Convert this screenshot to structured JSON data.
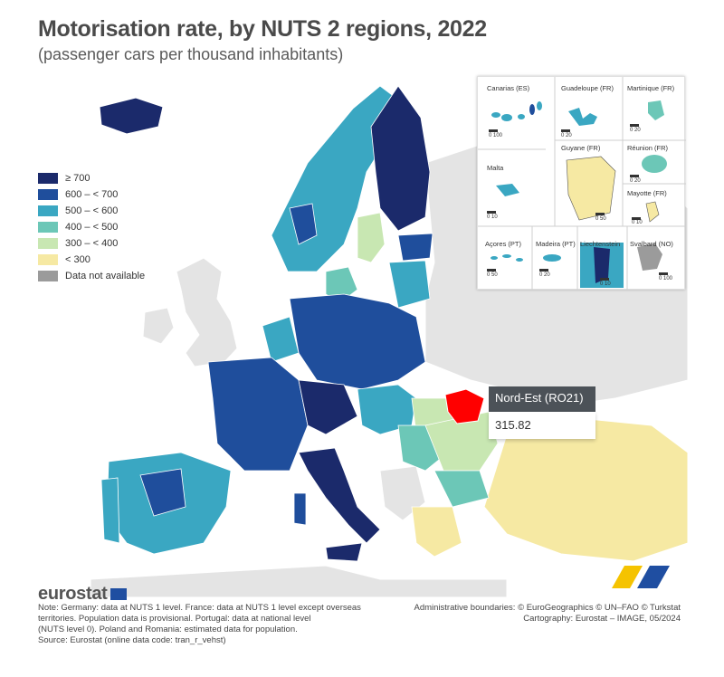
{
  "header": {
    "title": "Motorisation rate, by NUTS 2 regions, 2022",
    "subtitle": "(passenger cars per thousand inhabitants)"
  },
  "legend": [
    {
      "label": "≥ 700",
      "color": "#1b2a6b"
    },
    {
      "label": "600 – < 700",
      "color": "#1f4e9c"
    },
    {
      "label": "500 – < 600",
      "color": "#3aa7c2"
    },
    {
      "label": "400 – < 500",
      "color": "#6cc7b7"
    },
    {
      "label": "300 – < 400",
      "color": "#c8e7b2"
    },
    {
      "label": "< 300",
      "color": "#f6e9a3"
    },
    {
      "label": "Data not available",
      "color": "#9b9b9b"
    }
  ],
  "insets": {
    "canarias": "Canarias (ES)",
    "guadeloupe": "Guadeloupe (FR)",
    "martinique": "Martinique (FR)",
    "reunion": "Réunion (FR)",
    "malta": "Malta",
    "guyane": "Guyane (FR)",
    "mayotte": "Mayotte (FR)",
    "acores": "Açores (PT)",
    "madeira": "Madeira (PT)",
    "liechtenstein": "Liechtenstein",
    "svalbard": "Svalbard (NO)",
    "scales": {
      "canarias": "0  100",
      "guadeloupe": "0  20",
      "martinique": "0  20",
      "reunion": "0  20",
      "malta": "0  10",
      "guyane": "0  50",
      "mayotte": "0  10",
      "acores": "0  50",
      "madeira": "0  20",
      "liechtenstein": "0  10",
      "svalbard": "0  100"
    }
  },
  "tooltip": {
    "region": "Nord-Est (RO21)",
    "value": "315.82"
  },
  "brand": {
    "name": "eurostat"
  },
  "notes": {
    "line1": "Note: Germany: data at NUTS 1 level. France: data at NUTS 1 level except overseas",
    "line2": "territories. Population data is provisional. Portugal: data at national level",
    "line3": "(NUTS level 0). Poland and Romania: estimated data for population.",
    "line4": "Source: Eurostat (online data code: tran_r_vehst)"
  },
  "credits": {
    "line1": "Administrative boundaries: © EuroGeographics © UN–FAO © Turkstat",
    "line2": "Cartography: Eurostat – IMAGE, 05/2024"
  }
}
